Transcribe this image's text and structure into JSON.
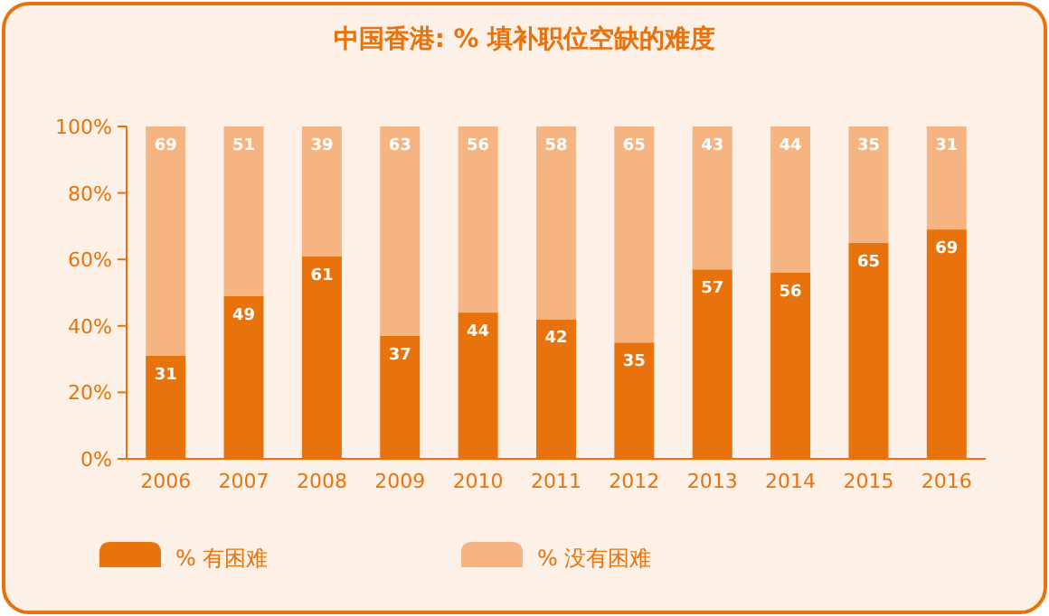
{
  "chart_data": {
    "type": "bar",
    "stacked": true,
    "title": "中国香港: % 填补职位空缺的难度",
    "categories": [
      "2006",
      "2007",
      "2008",
      "2009",
      "2010",
      "2011",
      "2012",
      "2013",
      "2014",
      "2015",
      "2016"
    ],
    "series": [
      {
        "name": "% 有困难",
        "color": "#e8720c",
        "values": [
          31,
          49,
          61,
          37,
          44,
          42,
          35,
          57,
          56,
          65,
          69
        ]
      },
      {
        "name": "% 没有困难",
        "color": "#f5b482",
        "values": [
          69,
          51,
          39,
          63,
          56,
          58,
          65,
          43,
          44,
          35,
          31
        ]
      }
    ],
    "ylim": [
      0,
      100
    ],
    "yticks": [
      {
        "value": 0,
        "label": "0%"
      },
      {
        "value": 20,
        "label": "20%"
      },
      {
        "value": 40,
        "label": "40%"
      },
      {
        "value": 60,
        "label": "60%"
      },
      {
        "value": 80,
        "label": "80%"
      },
      {
        "value": 100,
        "label": "100%"
      }
    ],
    "data_labels": true,
    "legend": "bottom left"
  }
}
